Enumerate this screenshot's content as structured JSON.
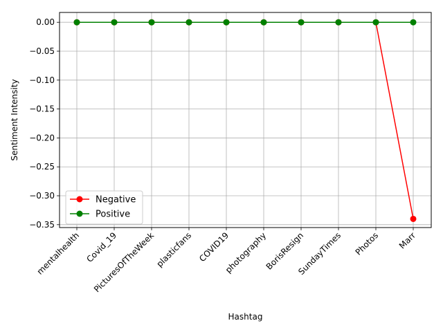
{
  "chart_data": {
    "type": "line",
    "xlabel": "Hashtag",
    "ylabel": "Sentiment Intensity",
    "categories": [
      "mentalhealth",
      "Covid_19",
      "PicturesOfTheWeek",
      "plasticfans",
      "COVID19",
      "photography",
      "BorisResign",
      "SundayTimes",
      "Photos",
      "Marr"
    ],
    "series": [
      {
        "name": "Negative",
        "color": "#ff0000",
        "values": [
          0,
          0,
          0,
          0,
          0,
          0,
          0,
          0,
          0,
          -0.34
        ]
      },
      {
        "name": "Positive",
        "color": "#008000",
        "values": [
          0,
          0,
          0,
          0,
          0,
          0,
          0,
          0,
          0,
          0
        ]
      }
    ],
    "ylim": [
      -0.355,
      0.017
    ],
    "yticks": [
      0.0,
      -0.05,
      -0.1,
      -0.15,
      -0.2,
      -0.25,
      -0.3,
      -0.35
    ],
    "ytick_labels": [
      "0.00",
      "−0.05",
      "−0.10",
      "−0.15",
      "−0.20",
      "−0.25",
      "−0.30",
      "−0.35"
    ],
    "grid": true,
    "legend_position": "lower-left"
  }
}
